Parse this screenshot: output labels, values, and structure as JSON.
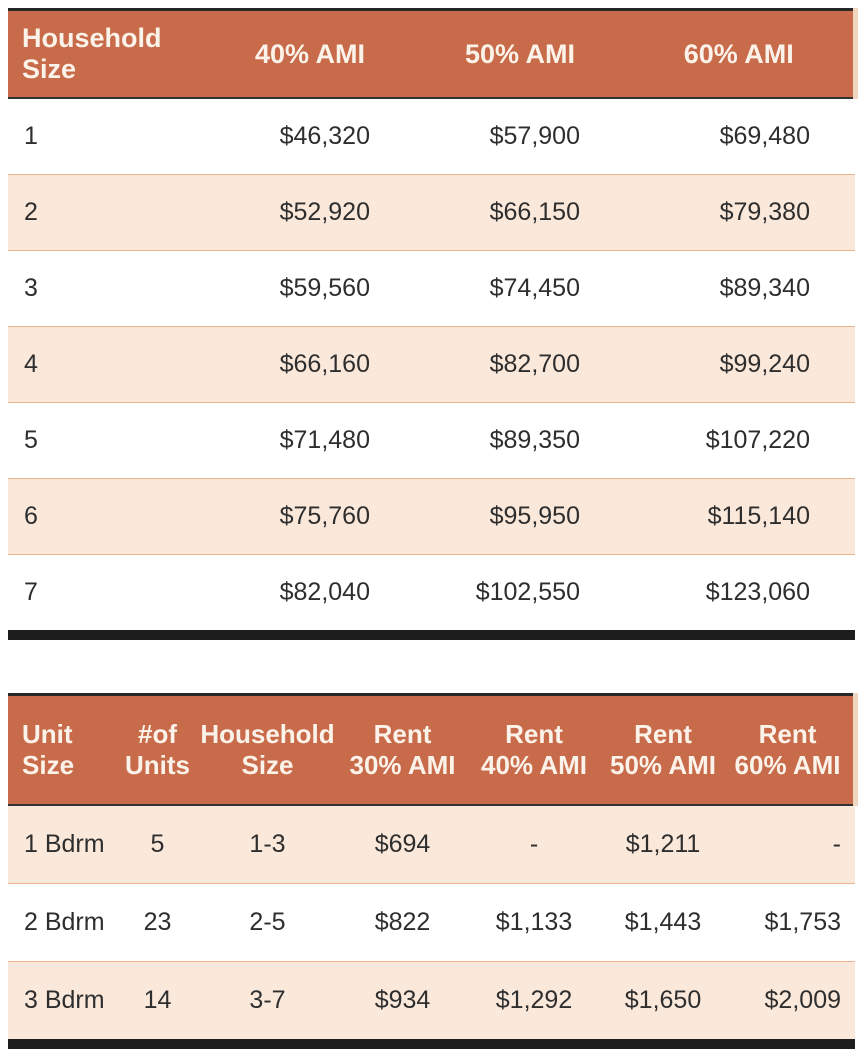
{
  "colors": {
    "header_bg": "#c86b4a",
    "header_text": "#fbf3ea",
    "row_alt_bg": "#fae8db",
    "row_divider": "#eab58e",
    "dark_rule": "#272727",
    "bottom_bar": "#1d1d1d",
    "body_text": "#2e2e2e"
  },
  "chart_data": [
    {
      "type": "table",
      "title": "",
      "columns": [
        "Household Size",
        "40% AMI",
        "50% AMI",
        "60% AMI"
      ],
      "header_lines": [
        [
          "Household",
          "Size"
        ],
        [
          "40% AMI"
        ],
        [
          "50% AMI"
        ],
        [
          "60% AMI"
        ]
      ],
      "rows": [
        [
          "1",
          "$46,320",
          "$57,900",
          "$69,480"
        ],
        [
          "2",
          "$52,920",
          "$66,150",
          "$79,380"
        ],
        [
          "3",
          "$59,560",
          "$74,450",
          "$89,340"
        ],
        [
          "4",
          "$66,160",
          "$82,700",
          "$99,240"
        ],
        [
          "5",
          "$71,480",
          "$89,350",
          "$107,220"
        ],
        [
          "6",
          "$75,760",
          "$95,950",
          "$115,140"
        ],
        [
          "7",
          "$82,040",
          "$102,550",
          "$123,060"
        ]
      ]
    },
    {
      "type": "table",
      "title": "",
      "columns": [
        "Unit Size",
        "#of Units",
        "Household Size",
        "Rent 30% AMI",
        "Rent 40% AMI",
        "Rent 50% AMI",
        "Rent 60% AMI"
      ],
      "header_lines": [
        [
          "Unit",
          "Size"
        ],
        [
          "#of",
          "Units"
        ],
        [
          "Household",
          "Size"
        ],
        [
          "Rent",
          "30% AMI"
        ],
        [
          "Rent",
          "40% AMI"
        ],
        [
          "Rent",
          "50% AMI"
        ],
        [
          "Rent",
          "60% AMI"
        ]
      ],
      "rows": [
        [
          "1 Bdrm",
          "5",
          "1-3",
          "$694",
          "-",
          "$1,211",
          "-"
        ],
        [
          "2 Bdrm",
          "23",
          "2-5",
          "$822",
          "$1,133",
          "$1,443",
          "$1,753"
        ],
        [
          "3 Bdrm",
          "14",
          "3-7",
          "$934",
          "$1,292",
          "$1,650",
          "$2,009"
        ]
      ]
    }
  ]
}
